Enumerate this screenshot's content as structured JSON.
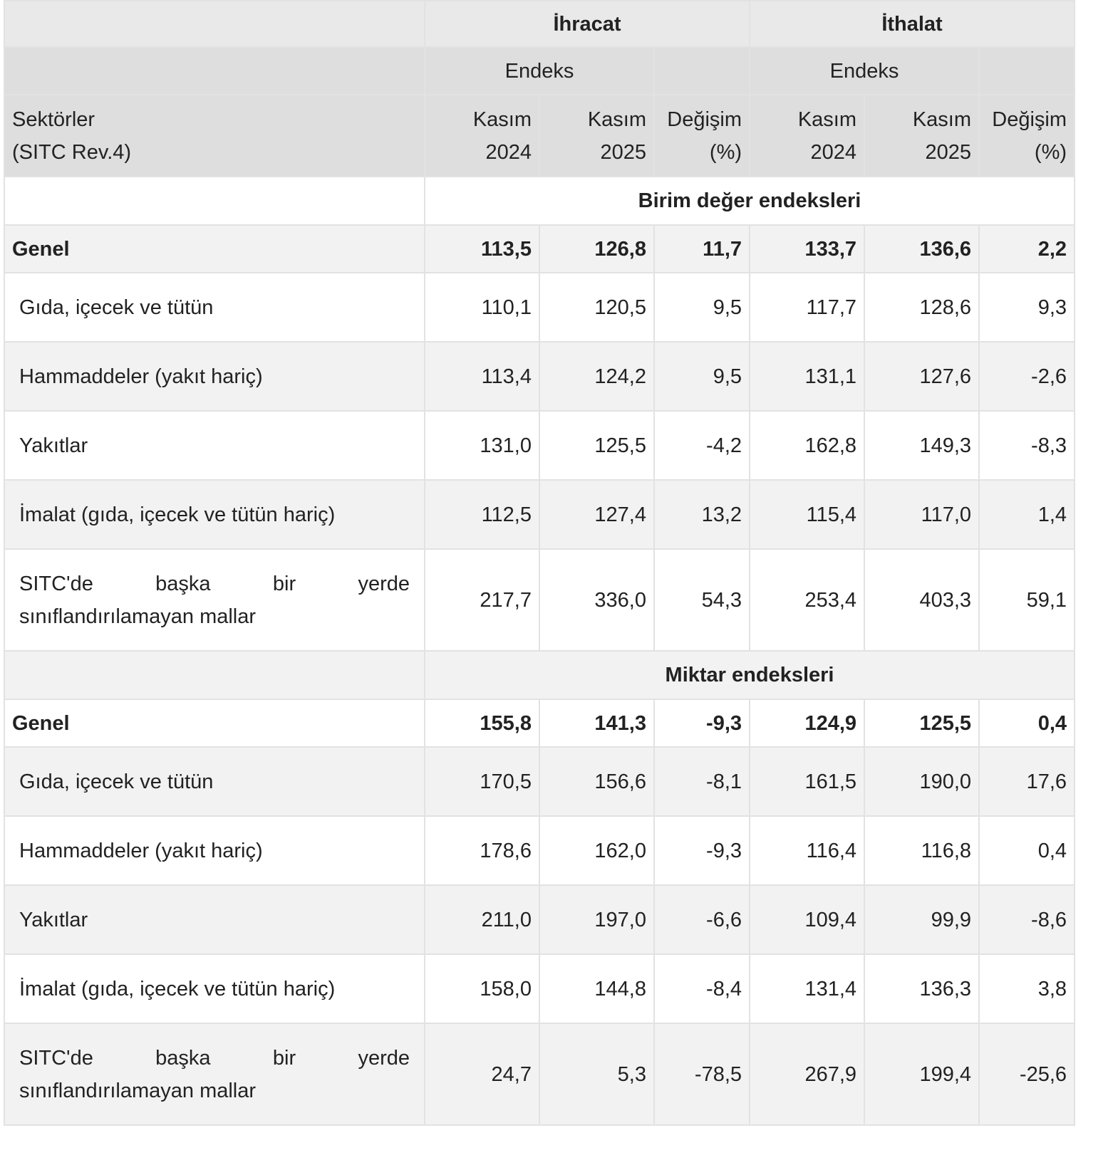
{
  "header": {
    "sector": [
      "Sektörler",
      "(SITC Rev.4)"
    ],
    "groups": [
      "İhracat",
      "İthalat"
    ],
    "index": [
      "Endeks",
      "Endeks"
    ],
    "columns": [
      [
        "Kasım",
        "2024"
      ],
      [
        "Kasım",
        "2025"
      ],
      [
        "Değişim",
        "(%)"
      ],
      [
        "Kasım",
        "2024"
      ],
      [
        "Kasım",
        "2025"
      ],
      [
        "Değişim",
        "(%)"
      ]
    ]
  },
  "sections": [
    {
      "title": "Birim değer endeksleri",
      "rows": [
        {
          "label": "Genel",
          "values": [
            "113,5",
            "126,8",
            "11,7",
            "133,7",
            "136,6",
            "2,2"
          ]
        },
        {
          "label": "Gıda, içecek ve tütün",
          "values": [
            "110,1",
            "120,5",
            "9,5",
            "117,7",
            "128,6",
            "9,3"
          ]
        },
        {
          "label": "Hammaddeler (yakıt hariç)",
          "values": [
            "113,4",
            "124,2",
            "9,5",
            "131,1",
            "127,6",
            "-2,6"
          ]
        },
        {
          "label": "Yakıtlar",
          "values": [
            "131,0",
            "125,5",
            "-4,2",
            "162,8",
            "149,3",
            "-8,3"
          ]
        },
        {
          "label": "İmalat (gıda, içecek ve tütün hariç)",
          "values": [
            "112,5",
            "127,4",
            "13,2",
            "115,4",
            "117,0",
            "1,4"
          ]
        },
        {
          "label": "SITC'de başka bir yerde sınıflandırılamayan mallar",
          "values": [
            "217,7",
            "336,0",
            "54,3",
            "253,4",
            "403,3",
            "59,1"
          ]
        }
      ]
    },
    {
      "title": "Miktar endeksleri",
      "rows": [
        {
          "label": "Genel",
          "values": [
            "155,8",
            "141,3",
            "-9,3",
            "124,9",
            "125,5",
            "0,4"
          ]
        },
        {
          "label": "Gıda, içecek ve tütün",
          "values": [
            "170,5",
            "156,6",
            "-8,1",
            "161,5",
            "190,0",
            "17,6"
          ]
        },
        {
          "label": "Hammaddeler (yakıt hariç)",
          "values": [
            "178,6",
            "162,0",
            "-9,3",
            "116,4",
            "116,8",
            "0,4"
          ]
        },
        {
          "label": "Yakıtlar",
          "values": [
            "211,0",
            "197,0",
            "-6,6",
            "109,4",
            "99,9",
            "-8,6"
          ]
        },
        {
          "label": "İmalat (gıda, içecek ve tütün hariç)",
          "values": [
            "158,0",
            "144,8",
            "-8,4",
            "131,4",
            "136,3",
            "3,8"
          ]
        },
        {
          "label": "SITC'de başka bir yerde sınıflandırılamayan mallar",
          "values": [
            "24,7",
            "5,3",
            "-78,5",
            "267,9",
            "199,4",
            "-25,6"
          ]
        }
      ]
    }
  ]
}
